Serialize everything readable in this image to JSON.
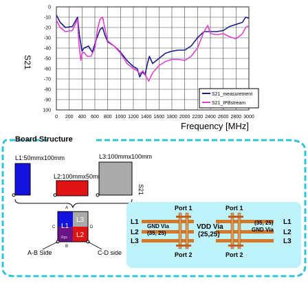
{
  "chart_data": {
    "type": "line",
    "ylabel": "S21",
    "xlabel": "Frequency [MHz]",
    "xlim": [
      0,
      3000
    ],
    "ylim": [
      -100,
      0
    ],
    "x_ticks": [
      "0",
      "200",
      "400",
      "600",
      "800",
      "1000",
      "1200",
      "1400",
      "1600",
      "1800",
      "2000",
      "2200",
      "2400",
      "2600",
      "2800",
      "3000"
    ],
    "y_ticks": [
      "0",
      "-10",
      "-20",
      "-30",
      "-40",
      "-50",
      "-60",
      "-70",
      "-80",
      "-90",
      "100"
    ],
    "grid": true,
    "legend_position": "bottom-right",
    "series": [
      {
        "name": "S21_measurement",
        "color": "#1a1a8c",
        "points": [
          [
            0,
            -8
          ],
          [
            60,
            -15
          ],
          [
            140,
            -20
          ],
          [
            250,
            -19
          ],
          [
            330,
            -10
          ],
          [
            360,
            -28
          ],
          [
            400,
            -43
          ],
          [
            430,
            -40
          ],
          [
            500,
            -38
          ],
          [
            560,
            -44
          ],
          [
            620,
            -32
          ],
          [
            680,
            -22
          ],
          [
            720,
            -20
          ],
          [
            760,
            -28
          ],
          [
            800,
            -34
          ],
          [
            900,
            -38
          ],
          [
            1000,
            -44
          ],
          [
            1100,
            -52
          ],
          [
            1200,
            -58
          ],
          [
            1260,
            -60
          ],
          [
            1300,
            -68
          ],
          [
            1340,
            -63
          ],
          [
            1380,
            -66
          ],
          [
            1420,
            -55
          ],
          [
            1450,
            -48
          ],
          [
            1500,
            -55
          ],
          [
            1600,
            -50
          ],
          [
            1700,
            -45
          ],
          [
            1800,
            -43
          ],
          [
            1900,
            -42
          ],
          [
            2000,
            -42
          ],
          [
            2100,
            -38
          ],
          [
            2200,
            -30
          ],
          [
            2300,
            -24
          ],
          [
            2400,
            -24
          ],
          [
            2500,
            -24
          ],
          [
            2600,
            -23
          ],
          [
            2700,
            -19
          ],
          [
            2800,
            -17
          ],
          [
            2900,
            -15
          ],
          [
            2950,
            -10
          ],
          [
            3000,
            -11
          ]
        ]
      },
      {
        "name": "S21_IPBstream",
        "color": "#e040d0",
        "points": [
          [
            0,
            -13
          ],
          [
            60,
            -20
          ],
          [
            140,
            -24
          ],
          [
            250,
            -23
          ],
          [
            330,
            -12
          ],
          [
            350,
            -35
          ],
          [
            380,
            -52
          ],
          [
            400,
            -45
          ],
          [
            430,
            -44
          ],
          [
            480,
            -48
          ],
          [
            540,
            -48
          ],
          [
            600,
            -40
          ],
          [
            640,
            -22
          ],
          [
            680,
            -12
          ],
          [
            720,
            -10
          ],
          [
            760,
            -22
          ],
          [
            800,
            -33
          ],
          [
            900,
            -38
          ],
          [
            1000,
            -45
          ],
          [
            1100,
            -55
          ],
          [
            1200,
            -60
          ],
          [
            1260,
            -62
          ],
          [
            1300,
            -65
          ],
          [
            1350,
            -62
          ],
          [
            1400,
            -68
          ],
          [
            1440,
            -72
          ],
          [
            1500,
            -64
          ],
          [
            1600,
            -57
          ],
          [
            1700,
            -53
          ],
          [
            1800,
            -51
          ],
          [
            1900,
            -51
          ],
          [
            2000,
            -52
          ],
          [
            2100,
            -48
          ],
          [
            2200,
            -40
          ],
          [
            2300,
            -24
          ],
          [
            2360,
            -18
          ],
          [
            2400,
            -26
          ],
          [
            2500,
            -27
          ],
          [
            2600,
            -26
          ],
          [
            2700,
            -29
          ],
          [
            2800,
            -31
          ],
          [
            2900,
            -26
          ],
          [
            2950,
            -20
          ],
          [
            3000,
            -18
          ]
        ]
      }
    ]
  },
  "board": {
    "title": "Board Structure",
    "l1": "L1:50mmx100mm",
    "l2": "L2:100mmx50mm",
    "l3": "L3:100mmx100mm",
    "s21_label": "S21",
    "sq_l1": "L1",
    "sq_l3": "L3",
    "sq_l2": "L2",
    "sq_rps": "Rps",
    "letter_a": "A",
    "letter_b": "B",
    "letter_c": "C",
    "letter_d": "D",
    "side_ab": "A-B Side",
    "side_cd": "C-D side"
  },
  "via": {
    "port1_left": "Port 1",
    "port1_right": "Port 1",
    "port2_left": "Port 2",
    "port2_right": "Port 2",
    "gnd_left": "GND Via",
    "gnd_left_coord": "(35, 25)",
    "gnd_right": "GND Via",
    "gnd_right_coord": "(35, 25)",
    "vdd": "VDD Via",
    "vdd_coord": "(25,25)",
    "layers_left": [
      "L1",
      "L2",
      "L3"
    ],
    "layers_right": [
      "L1",
      "L2",
      "L3"
    ]
  },
  "colors": {
    "l1_fill": "#1414e0",
    "l2_fill": "#e01414",
    "l3_fill": "#aaaaaa",
    "panel_bg": "#bff3fb",
    "frame": "#2ec4d6",
    "plane": "#d2782a",
    "pad": "#e09850"
  }
}
